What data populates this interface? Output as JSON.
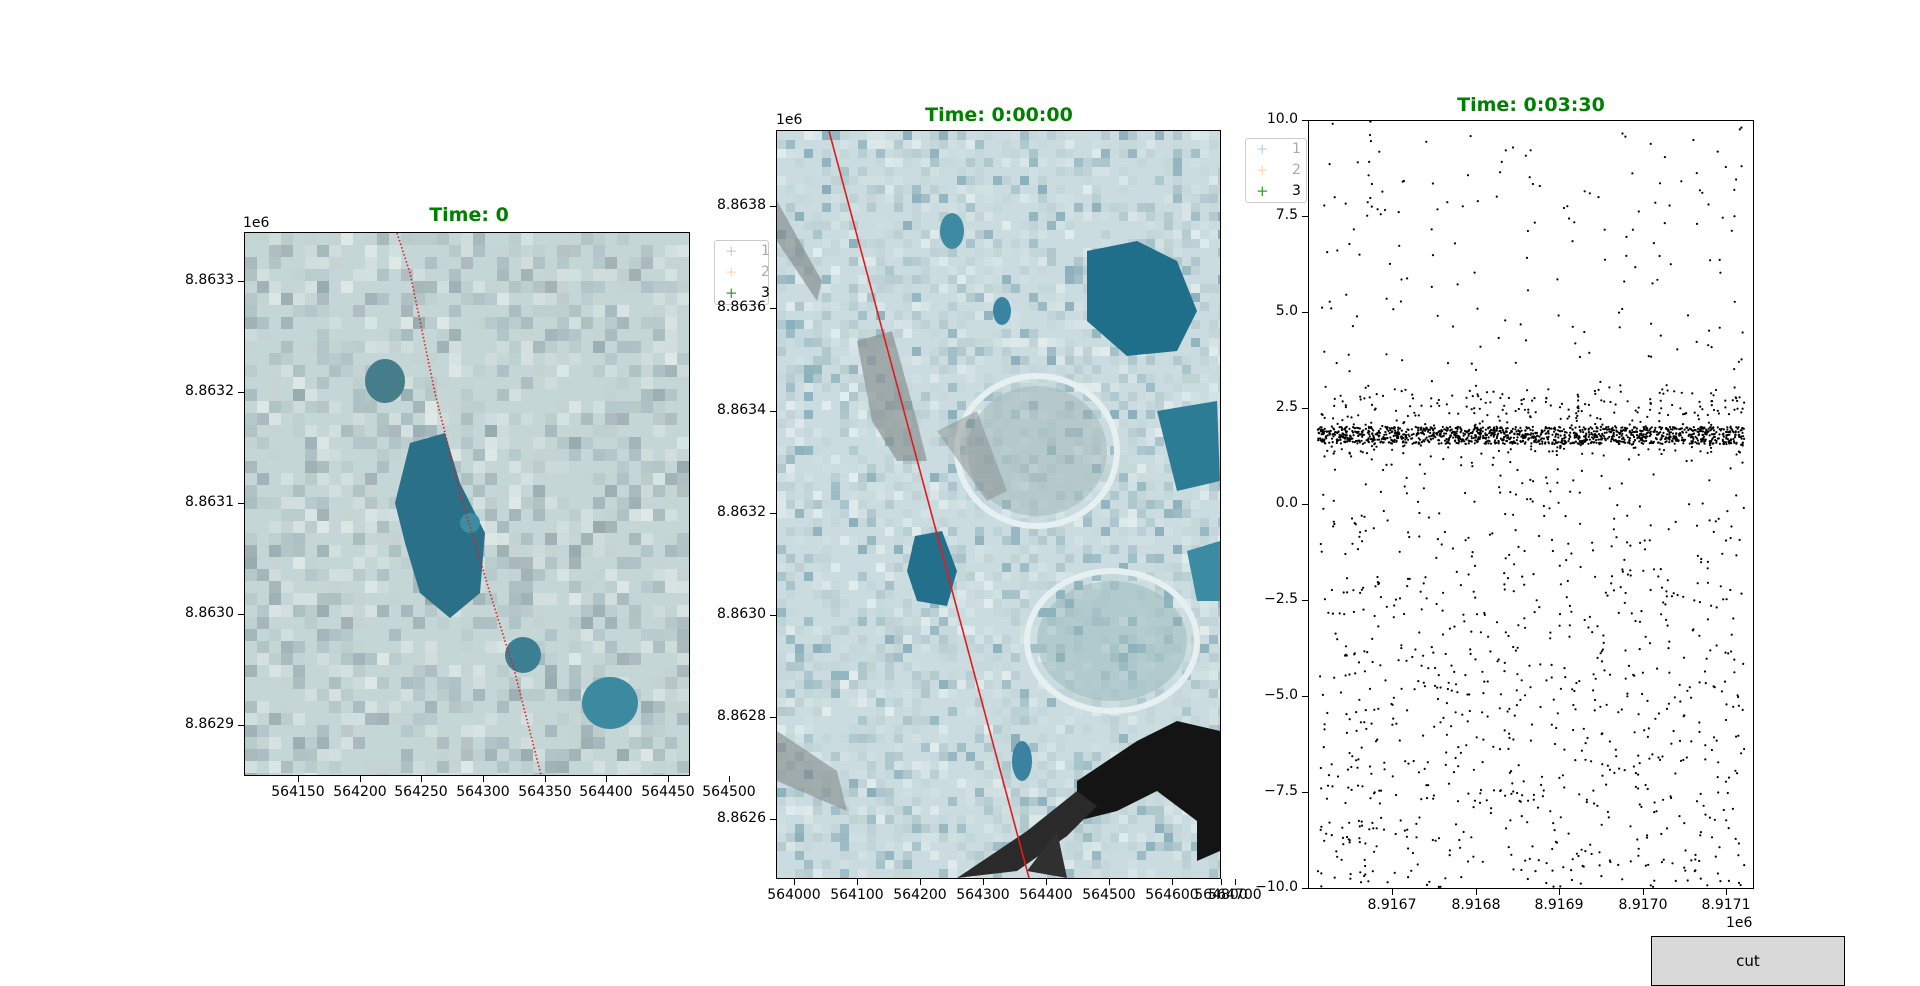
{
  "panels": [
    {
      "title": "Time: 0",
      "y_offset": "1e6",
      "y_ticks": [
        "8.8633",
        "8.8632",
        "8.8631",
        "8.8630",
        "8.8629"
      ],
      "x_ticks": [
        "564150",
        "564200",
        "564250",
        "564300",
        "564350",
        "564400",
        "564450",
        "564500"
      ]
    },
    {
      "title": "Time: 0:00:00",
      "y_offset": "1e6",
      "y_ticks": [
        "8.8638",
        "8.8636",
        "8.8634",
        "8.8632",
        "8.8630",
        "8.8628",
        "8.8626"
      ],
      "x_ticks": [
        "564000",
        "564100",
        "564200",
        "564300",
        "564400",
        "564500",
        "564600",
        "564700",
        "564800"
      ],
      "legend": [
        {
          "marker": "+",
          "label": "1",
          "color": "#1f77b4"
        },
        {
          "marker": "+",
          "label": "2",
          "color": "#ff7f0e"
        },
        {
          "marker": "+",
          "label": "3",
          "color": "#2ca02c"
        }
      ]
    },
    {
      "title": "Time: 0:03:30",
      "x_offset": "1e6",
      "y_ticks": [
        "10.0",
        "7.5",
        "5.0",
        "2.5",
        "0.0",
        "−2.5",
        "−5.0",
        "−7.5",
        "−10.0"
      ],
      "x_ticks": [
        "8.9167",
        "8.9168",
        "8.9169",
        "8.9170",
        "8.9171"
      ],
      "legend": [
        {
          "marker": "+",
          "label": "1",
          "color": "#1f77b4"
        },
        {
          "marker": "+",
          "label": "2",
          "color": "#ff7f0e"
        },
        {
          "marker": "+",
          "label": "3",
          "color": "#2ca02c"
        }
      ]
    }
  ],
  "colors": {
    "title": "#008000",
    "track": "#e41a1c",
    "ice": "#c9dbdc",
    "pond": "#2f7f93",
    "dark": "#1a1a1a"
  },
  "chart_data": {
    "type": "scatter",
    "xlim": [
      8.91663,
      8.91714
    ],
    "ylim": [
      -10.0,
      10.0
    ],
    "x_offset_label": "1e6",
    "description_band": {
      "x_range": [
        8.91664,
        8.91713
      ],
      "y_center": 1.8
    },
    "series": [
      {
        "name": "3",
        "color": "#2ca02c"
      }
    ]
  },
  "button": {
    "label": "cut"
  }
}
